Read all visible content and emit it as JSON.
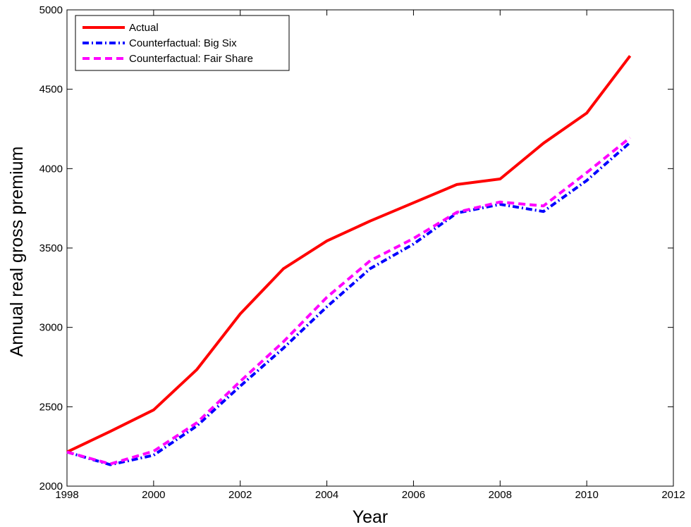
{
  "chart_data": {
    "type": "line",
    "title": "",
    "xlabel": "Year",
    "ylabel": "Annual real gross premium",
    "xlim": [
      1998,
      2012
    ],
    "ylim": [
      2000,
      5000
    ],
    "xticks": [
      1998,
      2000,
      2002,
      2004,
      2006,
      2008,
      2010,
      2012
    ],
    "yticks": [
      2000,
      2500,
      3000,
      3500,
      4000,
      4500,
      5000
    ],
    "grid": false,
    "legend_position": "top-left",
    "x": [
      1998,
      1999,
      2000,
      2001,
      2002,
      2003,
      2004,
      2005,
      2006,
      2007,
      2008,
      2009,
      2010,
      2011
    ],
    "series": [
      {
        "name": "Actual",
        "color": "#ff0000",
        "style": "solid",
        "values": [
          2215,
          2345,
          2480,
          2735,
          3085,
          3370,
          3545,
          3670,
          3785,
          3900,
          3935,
          4160,
          4350,
          4710
        ]
      },
      {
        "name": "Counterfactual: Big Six",
        "color": "#0000ff",
        "style": "dashdot",
        "values": [
          2215,
          2135,
          2195,
          2380,
          2630,
          2870,
          3130,
          3370,
          3525,
          3720,
          3775,
          3730,
          3925,
          4165
        ]
      },
      {
        "name": "Counterfactual: Fair Share",
        "color": "#ff00ff",
        "style": "dashed",
        "values": [
          2215,
          2140,
          2220,
          2400,
          2660,
          2910,
          3190,
          3420,
          3560,
          3725,
          3790,
          3765,
          3975,
          4195
        ]
      }
    ]
  }
}
